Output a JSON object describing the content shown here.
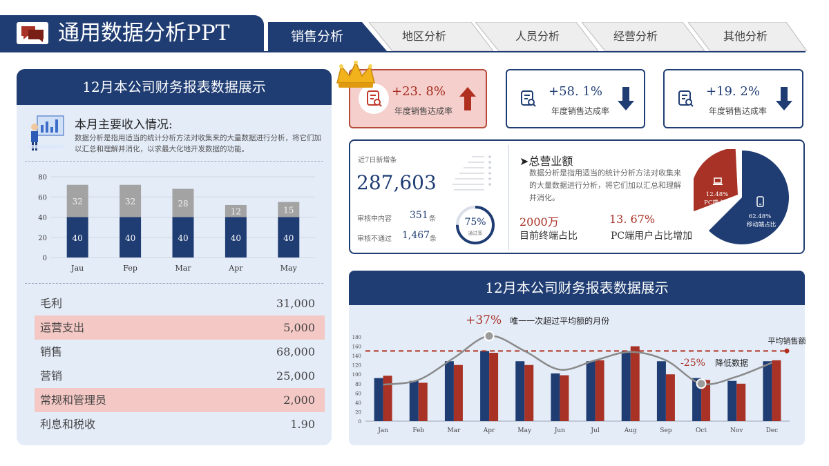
{
  "header": {
    "title": "通用数据分析PPT",
    "tabs": [
      {
        "label": "销售分析",
        "active": true
      },
      {
        "label": "地区分析",
        "active": false
      },
      {
        "label": "人员分析",
        "active": false
      },
      {
        "label": "经营分析",
        "active": false
      },
      {
        "label": "其他分析",
        "active": false
      }
    ]
  },
  "colors": {
    "navy": "#1f3d73",
    "red": "#a83226",
    "gray": "#a3a3a3",
    "panel": "#e4ecf8",
    "highlight": "#f4c8c4"
  },
  "left_panel": {
    "title": "12月本公司财务报表数据展示",
    "income_title": "本月主要收入情况:",
    "income_desc": "数据分析是指用适当的统计分析方法对收集来的大量数据进行分析，将它们加以汇总和理解并消化，以求最大化地开发数据的功能。",
    "icon": "analyst-dashboard-icon",
    "financials": [
      {
        "label": "毛利",
        "value": "31,000",
        "highlight": false
      },
      {
        "label": "运营支出",
        "value": "5,000",
        "highlight": true
      },
      {
        "label": "销售",
        "value": "68,000",
        "highlight": false
      },
      {
        "label": "营销",
        "value": "25,000",
        "highlight": false
      },
      {
        "label": "常规和管理员",
        "value": "2,000",
        "highlight": true
      },
      {
        "label": "利息和税收",
        "value": "1.90",
        "highlight": false
      }
    ]
  },
  "kpis": [
    {
      "value": "+23. 8%",
      "label": "年度销售达成率",
      "trend": "up",
      "active": true,
      "icon": "report-search-icon"
    },
    {
      "value": "+58. 1%",
      "label": "年度销售达成率",
      "trend": "down",
      "active": false,
      "icon": "report-search-icon"
    },
    {
      "value": "+19. 2%",
      "label": "年度销售达成率",
      "trend": "down",
      "active": false,
      "icon": "report-search-icon"
    }
  ],
  "stats": {
    "new_label": "近7日新增条",
    "new_value": "287,603",
    "reviewing_label": "审核中内容",
    "reviewing_value": "351",
    "rejected_label": "审核不通过",
    "rejected_value": "1,467",
    "unit": "条",
    "ring_percent": "75%",
    "ring_label": "通过率",
    "ring_fraction": 0.75
  },
  "revenue": {
    "title": "总营业额",
    "desc": "数据分析是指用适当的统计分析方法对收集来的大量数据进行分析，将它们加以汇总和理解并消化。",
    "stat1_value": "2000万",
    "stat1_label": "目前终端占比",
    "stat2_value": "13. 67%",
    "stat2_label": "PC端用户占比增加"
  },
  "bottom_panel": {
    "title": "12月本公司财务报表数据展示"
  },
  "chart_data": [
    {
      "type": "bar",
      "stacked": true,
      "categories": [
        "Jau",
        "Fep",
        "Mar",
        "Apr",
        "May"
      ],
      "series": [
        {
          "values": [
            40,
            40,
            40,
            40,
            40
          ],
          "color": "#1f3d73"
        },
        {
          "values": [
            32,
            32,
            28,
            12,
            15
          ],
          "color": "#a3a3a3"
        }
      ],
      "yticks": [
        0,
        20,
        40,
        60,
        80
      ],
      "ylim": [
        0,
        80
      ],
      "grid": true
    },
    {
      "type": "pie",
      "slices": [
        {
          "name": "PC端占比",
          "label": "12.48%",
          "value": 12.48,
          "color": "#a83226",
          "icon": "laptop-icon"
        },
        {
          "name": "移动端占比",
          "label": "62.48%",
          "value": 62.48,
          "color": "#1f3d73",
          "icon": "phone-icon"
        }
      ]
    },
    {
      "type": "bar",
      "categories": [
        "Jan",
        "Feb",
        "Mar",
        "Apr",
        "May",
        "Jun",
        "Jul",
        "Aug",
        "Sep",
        "Oct",
        "Nov",
        "Dec"
      ],
      "series": [
        {
          "values": [
            92,
            86,
            128,
            150,
            128,
            102,
            128,
            150,
            128,
            92,
            86,
            128
          ],
          "color": "#1f3d73"
        },
        {
          "values": [
            97,
            82,
            120,
            146,
            120,
            98,
            130,
            160,
            100,
            88,
            80,
            130
          ],
          "color": "#a83226"
        }
      ],
      "trend_line": [
        78,
        88,
        135,
        182,
        150,
        110,
        130,
        148,
        130,
        80,
        95,
        125
      ],
      "average": 150,
      "average_label": "平均销售额",
      "yticks": [
        0,
        20,
        40,
        60,
        80,
        100,
        120,
        140,
        160,
        180
      ],
      "ylim": [
        0,
        180
      ],
      "annotations": [
        {
          "value": "+37%",
          "text": "唯一一次超过平均额的月份",
          "category": "Apr"
        },
        {
          "value": "-25%",
          "text": "降低数据",
          "category": "Oct"
        }
      ]
    }
  ]
}
